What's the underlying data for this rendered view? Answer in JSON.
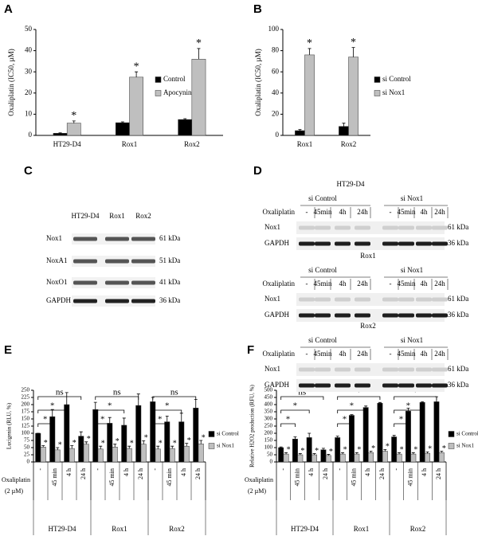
{
  "chart_data": [
    {
      "type": "bar",
      "panel": "A",
      "ylabel": "Oxaliplatin (IC50, µM)",
      "categories": [
        "HT29-D4",
        "Rox1",
        "Rox2"
      ],
      "series": [
        {
          "name": "Control",
          "color": "#000000",
          "values": [
            1,
            6,
            7.5
          ],
          "errors": [
            0.2,
            0.4,
            0.4
          ]
        },
        {
          "name": "Apocynin",
          "color": "#bfbfbf",
          "values": [
            5.8,
            27.5,
            36
          ],
          "errors": [
            1,
            2.5,
            5
          ],
          "marks": [
            "*",
            "*",
            "*"
          ]
        }
      ],
      "ylim": [
        0,
        50
      ],
      "yticks": [
        0,
        10,
        20,
        30,
        40,
        50
      ]
    },
    {
      "type": "bar",
      "panel": "B",
      "ylabel": "Oxaliplatin (IC50, µM)",
      "categories": [
        "Rox1",
        "Rox2"
      ],
      "series": [
        {
          "name": "si Control",
          "color": "#000000",
          "values": [
            4.5,
            8.5
          ],
          "errors": [
            1,
            3
          ]
        },
        {
          "name": "si Nox1",
          "color": "#bfbfbf",
          "values": [
            76,
            74
          ],
          "errors": [
            6,
            9
          ],
          "marks": [
            "*",
            "*"
          ]
        }
      ],
      "ylim": [
        0,
        100
      ],
      "yticks": [
        0,
        20,
        40,
        60,
        80,
        100
      ]
    },
    {
      "type": "bar",
      "panel": "E",
      "ylabel": "Lucigenin (RLU, %)",
      "xlabel": [
        "Oxaliplatin",
        "(2 µM)"
      ],
      "groups": [
        "HT29-D4",
        "Rox1",
        "Rox2"
      ],
      "categories": [
        "-",
        "45 min",
        "4 h",
        "24 h",
        "-",
        "45 min",
        "4 h",
        "24 h",
        "-",
        "45 min",
        "4 h",
        "24 h"
      ],
      "series": [
        {
          "name": "si Control",
          "color": "#000000",
          "values": [
            100,
            158,
            200,
            90,
            183,
            135,
            128,
            197,
            210,
            140,
            140,
            188
          ],
          "errors": [
            0,
            25,
            42,
            15,
            25,
            20,
            25,
            40,
            15,
            20,
            30,
            30
          ]
        },
        {
          "name": "si Nox1",
          "color": "#bfbfbf",
          "values": [
            52,
            42,
            47,
            62,
            45,
            52,
            47,
            62,
            45,
            47,
            55,
            63
          ],
          "errors": [
            5,
            8,
            10,
            8,
            10,
            10,
            8,
            12,
            10,
            8,
            10,
            12
          ],
          "marks": [
            "*",
            "*",
            "*",
            "*",
            "*",
            "*",
            "*",
            "*",
            "*",
            "*",
            "*",
            "*"
          ]
        }
      ],
      "brackets": [
        [
          "*",
          "*",
          "ns"
        ],
        [
          "*",
          "*",
          "ns"
        ],
        [
          "*",
          "*",
          "ns"
        ]
      ],
      "ylim": [
        0,
        250
      ],
      "yticks": [
        0,
        25,
        50,
        75,
        100,
        125,
        150,
        175,
        200,
        225,
        250
      ]
    },
    {
      "type": "bar",
      "panel": "F",
      "ylabel": "Relative H2O2 production (RFU, %)",
      "xlabel": [
        "Oxaliplatin",
        "(2 µM)"
      ],
      "groups": [
        "HT29-D4",
        "Rox1",
        "Rox2"
      ],
      "categories": [
        "-",
        "45 min",
        "4 h",
        "24 h",
        "-",
        "45 min",
        "4 h",
        "24 h",
        "-",
        "45 min",
        "4 h",
        "24 h"
      ],
      "series": [
        {
          "name": "si Control",
          "color": "#000000",
          "values": [
            100,
            160,
            170,
            85,
            170,
            325,
            380,
            410,
            175,
            355,
            415,
            420
          ],
          "errors": [
            5,
            15,
            30,
            10,
            10,
            5,
            10,
            5,
            10,
            20,
            5,
            35
          ]
        },
        {
          "name": "si Nox1",
          "color": "#bfbfbf",
          "values": [
            55,
            50,
            50,
            45,
            55,
            55,
            65,
            75,
            55,
            55,
            60,
            65
          ],
          "errors": [
            10,
            8,
            8,
            8,
            10,
            10,
            10,
            12,
            10,
            10,
            10,
            10
          ],
          "marks": [
            "*",
            "*",
            "*",
            "*",
            "*",
            "*",
            "*",
            "*",
            "*",
            "*",
            "*",
            "*"
          ]
        }
      ],
      "brackets": [
        [
          "*",
          "*",
          "ns"
        ],
        [
          "*",
          "*",
          "*"
        ],
        [
          "*",
          "*",
          "*"
        ]
      ],
      "ylim": [
        0,
        500
      ],
      "yticks": [
        0,
        50,
        100,
        150,
        200,
        250,
        300,
        350,
        400,
        450,
        500
      ]
    }
  ],
  "blots": [
    {
      "panel": "C",
      "columns": [
        "HT29-D4",
        "Rox1",
        "Rox2"
      ],
      "rows": [
        {
          "name": "Nox1",
          "size": "61 kDa"
        },
        {
          "name": "NoxA1",
          "size": "51 kDa"
        },
        {
          "name": "NoxO1",
          "size": "41 kDa"
        },
        {
          "name": "GAPDH",
          "size": "36 kDa"
        }
      ]
    },
    {
      "panel": "D",
      "subpanels": [
        {
          "title": "HT29-D4",
          "groups": [
            "si Control",
            "si Nox1"
          ],
          "treatment": "Oxaliplatin",
          "conditions": [
            "-",
            "45min",
            "4h",
            "24h"
          ],
          "rows": [
            {
              "name": "Nox1",
              "size": "61 kDa"
            },
            {
              "name": "GAPDH",
              "size": "36 kDa"
            }
          ]
        },
        {
          "title": "Rox1",
          "groups": [
            "si Control",
            "si Nox1"
          ],
          "treatment": "Oxaliplatin",
          "conditions": [
            "-",
            "45min",
            "4h",
            "24h"
          ],
          "rows": [
            {
              "name": "Nox1",
              "size": "61 kDa"
            },
            {
              "name": "GAPDH",
              "size": "36 kDa"
            }
          ]
        },
        {
          "title": "Rox2",
          "groups": [
            "si Control",
            "si Nox1"
          ],
          "treatment": "Oxaliplatin",
          "conditions": [
            "-",
            "45min",
            "4h",
            "24h"
          ],
          "rows": [
            {
              "name": "Nox1",
              "size": "61 kDa"
            },
            {
              "name": "GAPDH",
              "size": "36 kDa"
            }
          ]
        }
      ]
    }
  ]
}
